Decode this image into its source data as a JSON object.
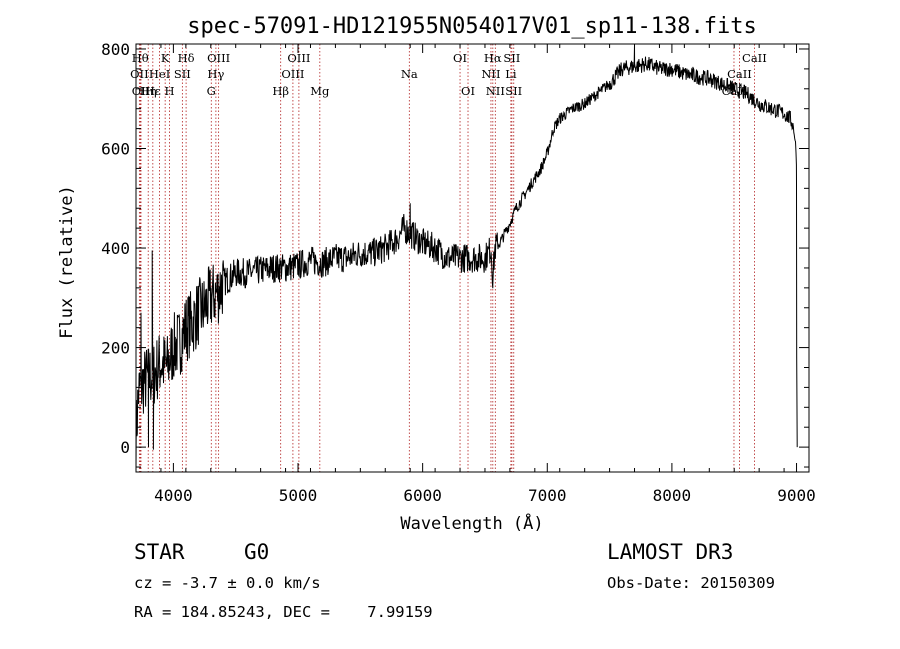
{
  "chart_data": {
    "type": "line",
    "title": "spec-57091-HD121955N054017V01_sp11-138.fits",
    "xlabel": "Wavelength (Å)",
    "ylabel": "Flux (relative)",
    "xlim": [
      3700,
      9100
    ],
    "ylim": [
      -50,
      810
    ],
    "x_ticks": [
      4000,
      5000,
      6000,
      7000,
      8000,
      9000
    ],
    "y_ticks": [
      0,
      200,
      400,
      600,
      800
    ],
    "series": [
      {
        "name": "flux",
        "anchors_x": [
          3700,
          3720,
          3760,
          3800,
          3850,
          3900,
          3950,
          4000,
          4050,
          4100,
          4150,
          4200,
          4250,
          4300,
          4350,
          4400,
          4450,
          4500,
          4600,
          4700,
          4800,
          4900,
          5000,
          5100,
          5200,
          5300,
          5400,
          5500,
          5600,
          5700,
          5800,
          5850,
          5900,
          5950,
          6000,
          6100,
          6200,
          6300,
          6400,
          6500,
          6550,
          6563,
          6580,
          6620,
          6700,
          6750,
          6800,
          6850,
          6900,
          6950,
          7000,
          7050,
          7100,
          7200,
          7300,
          7400,
          7500,
          7600,
          7700,
          7800,
          7900,
          8000,
          8100,
          8200,
          8300,
          8400,
          8500,
          8600,
          8700,
          8800,
          8900,
          8950,
          8980,
          9000
        ],
        "anchors_y": [
          20,
          110,
          130,
          140,
          150,
          170,
          160,
          200,
          210,
          240,
          250,
          270,
          280,
          300,
          310,
          330,
          340,
          350,
          350,
          355,
          360,
          360,
          365,
          375,
          370,
          380,
          380,
          390,
          390,
          400,
          420,
          440,
          430,
          420,
          410,
          400,
          380,
          380,
          380,
          380,
          400,
          340,
          400,
          410,
          450,
          480,
          500,
          520,
          540,
          560,
          590,
          640,
          660,
          680,
          690,
          710,
          730,
          760,
          765,
          770,
          760,
          760,
          750,
          745,
          740,
          730,
          720,
          710,
          690,
          680,
          670,
          660,
          640,
          580
        ],
        "noise": [
          [
            3700,
            4400,
            70
          ],
          [
            4400,
            6600,
            30
          ],
          [
            6600,
            7500,
            12
          ],
          [
            7500,
            9000,
            16
          ]
        ],
        "features": [
          {
            "x": 3740,
            "y": 270
          },
          {
            "x": 3800,
            "y": 0
          },
          {
            "x": 3830,
            "y": 395
          },
          {
            "x": 3840,
            "y": -5
          },
          {
            "x": 4300,
            "y": 260
          },
          {
            "x": 5900,
            "y": 490
          },
          {
            "x": 6563,
            "y": 325
          },
          {
            "x": 7700,
            "y": 815
          },
          {
            "x": 9000,
            "y": 530
          },
          {
            "x": 9001,
            "y": 180
          },
          {
            "x": 9005,
            "y": 0
          }
        ]
      }
    ],
    "lines": [
      {
        "x": 3734,
        "label": "Hθ",
        "row": 0
      },
      {
        "x": 3727,
        "label": "OII",
        "row": 1
      },
      {
        "x": 3740,
        "label": "OII",
        "row": 2
      },
      {
        "x": 3798,
        "label": "Hη",
        "row": 2
      },
      {
        "x": 3835,
        "label": "Hε",
        "row": 2
      },
      {
        "x": 3889,
        "label": "HeI",
        "row": 1
      },
      {
        "x": 3934,
        "label": "K",
        "row": 0
      },
      {
        "x": 3969,
        "label": "H",
        "row": 2
      },
      {
        "x": 4072,
        "label": "SII",
        "row": 1
      },
      {
        "x": 4102,
        "label": "Hδ",
        "row": 0
      },
      {
        "x": 4304,
        "label": "G",
        "row": 2
      },
      {
        "x": 4341,
        "label": "Hγ",
        "row": 1
      },
      {
        "x": 4363,
        "label": "OIII",
        "row": 0
      },
      {
        "x": 4861,
        "label": "Hβ",
        "row": 2
      },
      {
        "x": 4959,
        "label": "OIII",
        "row": 1
      },
      {
        "x": 5007,
        "label": "OIII",
        "row": 0
      },
      {
        "x": 5175,
        "label": "Mg",
        "row": 2
      },
      {
        "x": 5893,
        "label": "Na",
        "row": 1
      },
      {
        "x": 6300,
        "label": "OI",
        "row": 0
      },
      {
        "x": 6364,
        "label": "OI",
        "row": 2
      },
      {
        "x": 6548,
        "label": "NII",
        "row": 1
      },
      {
        "x": 6563,
        "label": "Hα",
        "row": 0
      },
      {
        "x": 6583,
        "label": "NII",
        "row": 2
      },
      {
        "x": 6708,
        "label": "Li",
        "row": 1
      },
      {
        "x": 6716,
        "label": "SII",
        "row": 0
      },
      {
        "x": 6731,
        "label": "SII",
        "row": 2
      },
      {
        "x": 8498,
        "label": "CaII",
        "row": 2
      },
      {
        "x": 8542,
        "label": "CaII",
        "row": 1
      },
      {
        "x": 8662,
        "label": "CaII",
        "row": 0
      }
    ]
  },
  "info": {
    "object_class": "STAR",
    "subclass": "G0",
    "survey": "LAMOST DR3",
    "cz": "cz = -3.7 ± 0.0 km/s",
    "obs_date": "Obs-Date: 20150309",
    "coords": "RA = 184.85243, DEC =    7.99159"
  },
  "colors": {
    "line": "#000000",
    "marker": "#b22222"
  }
}
